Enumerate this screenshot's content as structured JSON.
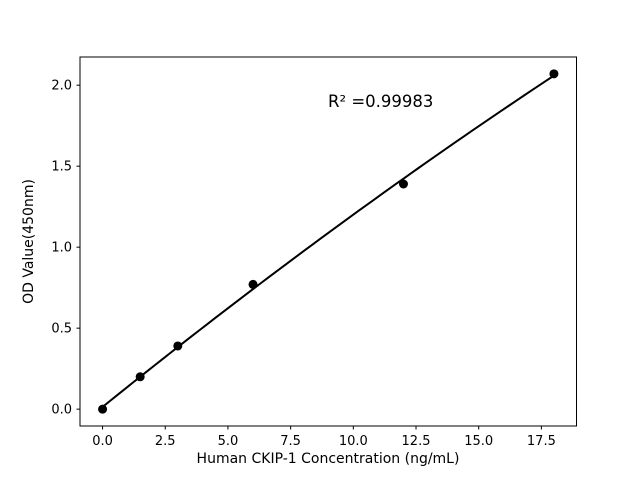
{
  "figure": {
    "background": "#ffffff"
  },
  "chart_data": {
    "type": "scatter",
    "title": "",
    "xlabel": "Human CKIP-1 Concentration (ng/mL)",
    "ylabel": "OD Value(450nm)",
    "annotation": "R² =0.99983",
    "r_squared": 0.99983,
    "points": {
      "x": [
        0,
        1.5,
        3,
        6,
        12,
        18
      ],
      "y": [
        0.0,
        0.2,
        0.39,
        0.77,
        1.39,
        2.07
      ]
    },
    "fit_curve": {
      "kind": "quadratic",
      "a": 0.0136,
      "b": 0.1251,
      "c": -0.000637,
      "x_start": 0,
      "x_end": 18
    },
    "xlim": [
      -0.9,
      18.9
    ],
    "ylim": [
      -0.104,
      2.174
    ],
    "xticks": {
      "values": [
        0,
        2.5,
        5,
        7.5,
        10,
        12.5,
        15,
        17.5
      ],
      "labels": [
        "0.0",
        "2.5",
        "5.0",
        "7.5",
        "10.0",
        "12.5",
        "15.0",
        "17.5"
      ]
    },
    "yticks": {
      "values": [
        0,
        0.5,
        1,
        1.5,
        2
      ],
      "labels": [
        "0.0",
        "0.5",
        "1.0",
        "1.5",
        "2.0"
      ]
    },
    "grid": false,
    "legend": null,
    "marker": {
      "shape": "circle",
      "color": "#000000",
      "radius": 4.5
    },
    "line": {
      "color": "#000000",
      "width": 2
    },
    "axes_color": "#000000"
  }
}
